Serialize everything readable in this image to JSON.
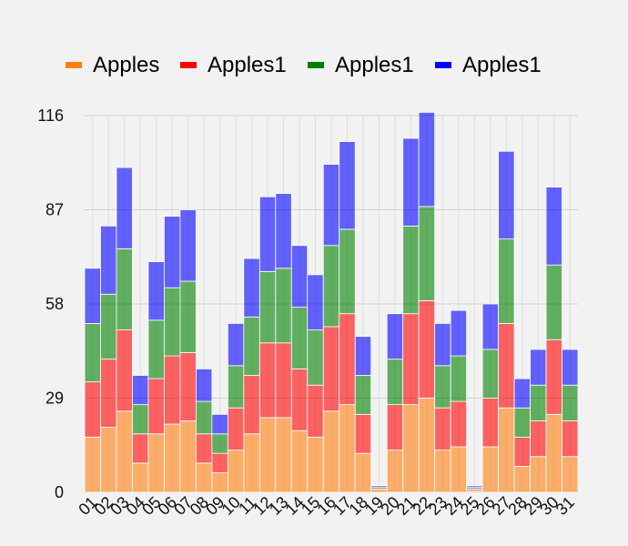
{
  "chart_data": {
    "type": "bar",
    "stacked": true,
    "title": "",
    "xlabel": "",
    "ylabel": "",
    "ylim": [
      0,
      116
    ],
    "yticks": [
      0,
      29,
      58,
      87,
      116
    ],
    "grid": true,
    "legend_position": "top",
    "categories": [
      "01",
      "02",
      "03",
      "04",
      "05",
      "06",
      "07",
      "08",
      "09",
      "10",
      "11",
      "12",
      "13",
      "14",
      "15",
      "16",
      "17",
      "18",
      "19",
      "20",
      "21",
      "22",
      "23",
      "24",
      "25",
      "26",
      "27",
      "28",
      "29",
      "30",
      "31"
    ],
    "series": [
      {
        "name": "Apples",
        "color": "#ff7f0e",
        "values": [
          17,
          20,
          25,
          9,
          18,
          21,
          22,
          9,
          6,
          13,
          18,
          23,
          23,
          19,
          17,
          25,
          27,
          12,
          1,
          13,
          27,
          29,
          13,
          14,
          0.5,
          14,
          26,
          8,
          11,
          24,
          11
        ]
      },
      {
        "name": "Apples1",
        "color": "#ff0000",
        "values": [
          17,
          21,
          25,
          9,
          17,
          21,
          21,
          9,
          6,
          13,
          18,
          23,
          23,
          19,
          16,
          26,
          28,
          12,
          0,
          14,
          28,
          30,
          13,
          14,
          0.5,
          15,
          26,
          9,
          11,
          23,
          11
        ]
      },
      {
        "name": "Apples1",
        "color": "#008000",
        "values": [
          18,
          20,
          25,
          9,
          18,
          21,
          22,
          10,
          6,
          13,
          18,
          22,
          23,
          19,
          17,
          25,
          26,
          12,
          0.5,
          14,
          27,
          29,
          13,
          14,
          0.5,
          15,
          26,
          9,
          11,
          23,
          11
        ]
      },
      {
        "name": "Apples1",
        "color": "#0000ff",
        "values": [
          17,
          21,
          25,
          9,
          18,
          22,
          22,
          10,
          6,
          13,
          18,
          23,
          23,
          19,
          17,
          25,
          27,
          12,
          0.5,
          14,
          27,
          29,
          13,
          14,
          0.5,
          14,
          27,
          9,
          11,
          24,
          11
        ]
      }
    ]
  }
}
